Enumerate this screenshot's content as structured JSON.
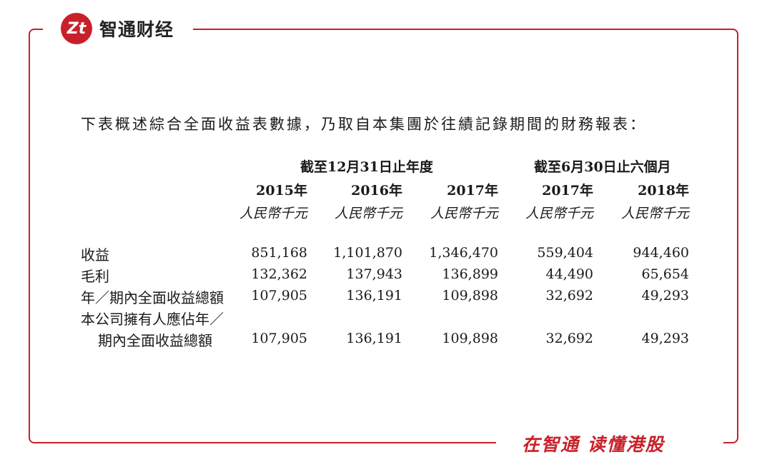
{
  "brand": {
    "logo_mark": "Zt",
    "name": "智通财经"
  },
  "slogan": "在智通 读懂港股",
  "intro": "下表概述綜合全面收益表數據，乃取自本集團於往績記錄期間的財務報表：",
  "table": {
    "group_headers": [
      "截至12月31日止年度",
      "截至6月30日止六個月"
    ],
    "years": [
      "2015年",
      "2016年",
      "2017年",
      "2017年",
      "2018年"
    ],
    "unit": "人民幣千元",
    "rows": [
      {
        "label": "收益",
        "values": [
          "851,168",
          "1,101,870",
          "1,346,470",
          "559,404",
          "944,460"
        ]
      },
      {
        "label": "毛利",
        "values": [
          "132,362",
          "137,943",
          "136,899",
          "44,490",
          "65,654"
        ]
      },
      {
        "label": "年／期內全面收益總額",
        "values": [
          "107,905",
          "136,191",
          "109,898",
          "32,692",
          "49,293"
        ]
      },
      {
        "label": "本公司擁有人應佔年／",
        "values": [
          "",
          "",
          "",
          "",
          ""
        ]
      },
      {
        "label": "期內全面收益總額",
        "values": [
          "107,905",
          "136,191",
          "109,898",
          "32,692",
          "49,293"
        ]
      }
    ]
  }
}
